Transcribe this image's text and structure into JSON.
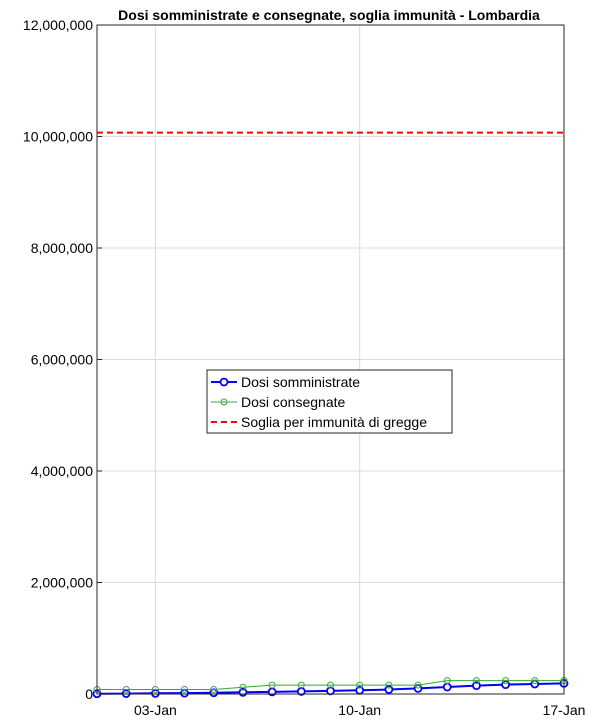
{
  "chart_data": {
    "type": "line",
    "title": "Dosi somministrate e consegnate, soglia immunità - Lombardia",
    "xlabel": "",
    "ylabel": "",
    "x": [
      "01-Jan",
      "02-Jan",
      "03-Jan",
      "04-Jan",
      "05-Jan",
      "06-Jan",
      "07-Jan",
      "08-Jan",
      "09-Jan",
      "10-Jan",
      "11-Jan",
      "12-Jan",
      "13-Jan",
      "14-Jan",
      "15-Jan",
      "16-Jan",
      "17-Jan"
    ],
    "x_ticks": [
      {
        "label": "03-Jan",
        "index": 2
      },
      {
        "label": "10-Jan",
        "index": 9
      },
      {
        "label": "17-Jan",
        "index": 16
      }
    ],
    "ylim": [
      0,
      12000000
    ],
    "y_ticks": [
      {
        "value": 0,
        "label": "0"
      },
      {
        "value": 2000000,
        "label": "2,000,000"
      },
      {
        "value": 4000000,
        "label": "4,000,000"
      },
      {
        "value": 6000000,
        "label": "6,000,000"
      },
      {
        "value": 8000000,
        "label": "8,000,000"
      },
      {
        "value": 10000000,
        "label": "10,000,000"
      },
      {
        "value": 12000000,
        "label": "12,000,000"
      }
    ],
    "grid": true,
    "legend_position": "center-left",
    "series": [
      {
        "name": "Dosi somministrate",
        "color": "#0000ff",
        "marker": "circle",
        "values": [
          5000,
          8000,
          12000,
          16000,
          22000,
          30000,
          38000,
          46000,
          56000,
          66000,
          80000,
          100000,
          125000,
          150000,
          168000,
          180000,
          190000
        ]
      },
      {
        "name": "Dosi consegnate",
        "color": "#33aa33",
        "marker": "circle-open",
        "values": [
          80000,
          80000,
          80000,
          80000,
          80000,
          120000,
          160000,
          160000,
          160000,
          160000,
          160000,
          160000,
          240000,
          240000,
          240000,
          240000,
          240000
        ]
      },
      {
        "name": "Soglia per immunità di gregge",
        "color": "#ff0000",
        "dashed": true,
        "constant": 10070000
      }
    ]
  }
}
